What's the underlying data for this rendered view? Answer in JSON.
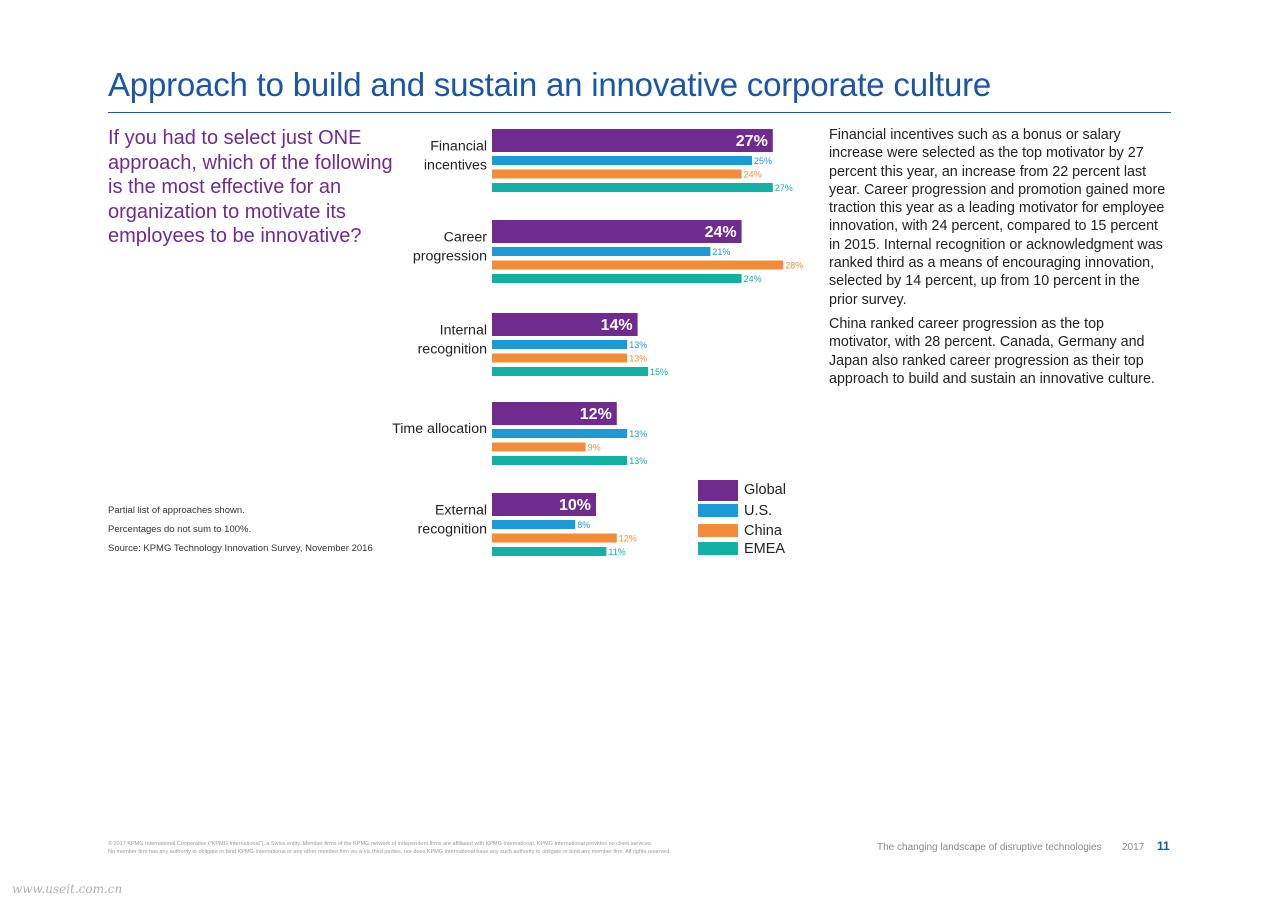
{
  "page": {
    "title": "Approach to build and sustain an innovative corporate culture",
    "question": "If you had to select just ONE approach, which of the following is the most effective for an organization to motivate its employees to be innovative?",
    "notes": [
      "Partial list of approaches shown.",
      "Percentages do not sum to 100%.",
      "Source: KPMG Technology Innovation Survey, November 2016"
    ],
    "body_paragraphs": [
      "Financial incentives such as a bonus or salary increase were selected as the top motivator by 27 percent this year, an increase from 22 percent last year. Career progression and promotion gained more traction this year as a leading motivator for employee innovation, with 24 percent, compared to 15 percent in 2015. Internal recognition or acknowledgment was ranked third as a means of encouraging innovation, selected by 14 percent, up from 10 percent in the prior survey.",
      "China ranked career progression as the top motivator, with 28 percent. Canada, Germany and Japan also ranked career progression as their top approach to build and sustain an innovative culture."
    ],
    "footer": {
      "legal_line1": "© 2017 KPMG International Cooperative (“KPMG International”), a Swiss entity. Member firms of the KPMG network of independent firms are affiliated with KPMG International. KPMG International provides no client services.",
      "legal_line2": "No member firm has any authority to obligate or bind KPMG International or any other member firm vis-à-vis third parties, nor does KPMG International have any such authority to obligate or bind any member firm. All rights reserved.",
      "report_title": "The changing landscape of disruptive technologies",
      "year": "2017",
      "page_number": "11"
    },
    "watermark": "www.useit.com.cn"
  },
  "chart_data": {
    "type": "bar",
    "orientation": "horizontal",
    "categories": [
      [
        "Financial",
        "incentives"
      ],
      [
        "Career",
        "progression"
      ],
      [
        "Internal",
        "recognition"
      ],
      [
        "Time allocation"
      ],
      [
        "External",
        "recognition"
      ]
    ],
    "series": [
      {
        "name": "Global",
        "color": "#6f2b8e",
        "values": [
          27,
          24,
          14,
          12,
          10
        ]
      },
      {
        "name": "U.S.",
        "color": "#1c9ad6",
        "values": [
          25,
          21,
          13,
          13,
          8
        ]
      },
      {
        "name": "China",
        "color": "#f28c38",
        "values": [
          24,
          28,
          13,
          9,
          12
        ]
      },
      {
        "name": "EMEA",
        "color": "#13b0a5",
        "values": [
          27,
          24,
          15,
          13,
          11
        ]
      }
    ],
    "value_suffix": "%",
    "legend_position": "bottom-right"
  }
}
